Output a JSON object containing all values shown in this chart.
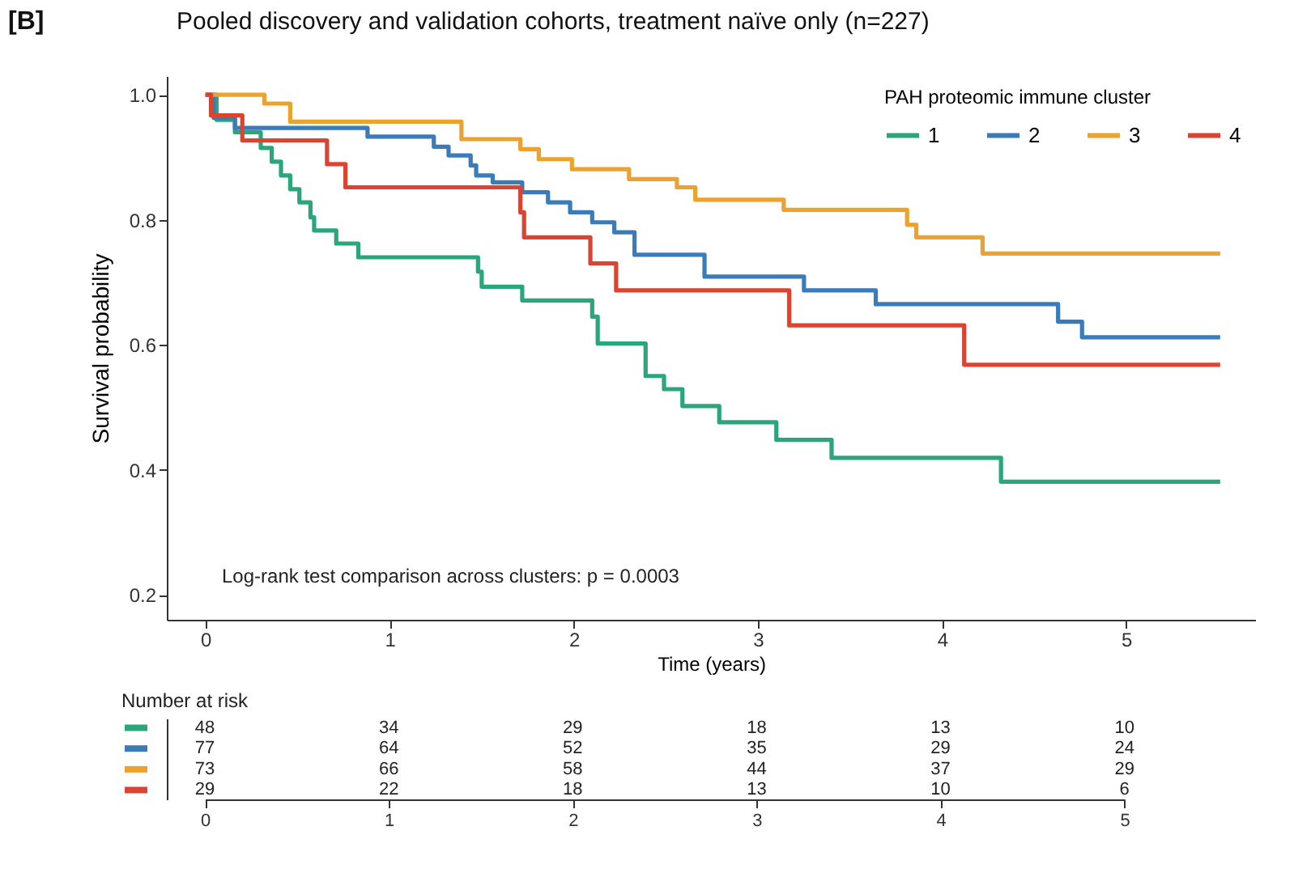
{
  "chart_data": [
    {
      "type": "step",
      "title": "Pooled discovery and validation cohorts, treatment naïve only (n=227)",
      "xlabel": "Time (years)",
      "ylabel": "Survival probability",
      "legend_title": "PAH proteomic immune cluster",
      "legend": "top right",
      "grid": false,
      "line_style": "solid",
      "xlim": [
        -0.21,
        5.7
      ],
      "ylim": [
        0.16,
        1.03
      ],
      "xticks": [
        0,
        1,
        2,
        3,
        4,
        5
      ],
      "yticks": [
        0.2,
        0.4,
        0.6,
        {
          "value": 1.0,
          "label": "1.0"
        },
        0.8
      ],
      "annotations": [
        "[B]",
        "Log-rank test comparison across clusters:  p = 0.0003"
      ],
      "series": [
        {
          "name": "1",
          "color": "#2aa57c",
          "x": [
            0,
            0.06,
            0.16,
            0.3,
            0.36,
            0.41,
            0.46,
            0.51,
            0.57,
            0.59,
            0.71,
            0.83,
            1.48,
            1.5,
            1.72,
            2.1,
            2.13,
            2.39,
            2.49,
            2.59,
            2.79,
            3.1,
            3.4,
            4.32,
            5.51
          ],
          "values": [
            1.0,
            0.96,
            0.94,
            0.915,
            0.893,
            0.871,
            0.849,
            0.828,
            0.804,
            0.783,
            0.762,
            0.74,
            0.717,
            0.693,
            0.671,
            0.645,
            0.602,
            0.55,
            0.529,
            0.502,
            0.476,
            0.448,
            0.419,
            0.381,
            0.381
          ]
        },
        {
          "name": "2",
          "color": "#3b7bb8",
          "x": [
            0,
            0.045,
            0.16,
            0.88,
            1.24,
            1.32,
            1.44,
            1.47,
            1.56,
            1.72,
            1.86,
            1.98,
            2.1,
            2.22,
            2.33,
            2.71,
            3.25,
            3.64,
            4.63,
            4.76,
            5.51
          ],
          "values": [
            1.0,
            0.963,
            0.947,
            0.933,
            0.917,
            0.903,
            0.887,
            0.871,
            0.86,
            0.844,
            0.828,
            0.812,
            0.796,
            0.78,
            0.744,
            0.709,
            0.687,
            0.665,
            0.637,
            0.612,
            0.612
          ]
        },
        {
          "name": "3",
          "color": "#eba22e",
          "x": [
            0,
            0.32,
            0.46,
            1.39,
            1.71,
            1.81,
            1.99,
            2.3,
            2.56,
            2.66,
            3.14,
            3.81,
            3.86,
            4.22,
            5.51
          ],
          "values": [
            1.0,
            0.986,
            0.957,
            0.929,
            0.913,
            0.897,
            0.881,
            0.865,
            0.852,
            0.832,
            0.816,
            0.792,
            0.772,
            0.746,
            0.746
          ]
        },
        {
          "name": "4",
          "color": "#dc4432",
          "x": [
            0,
            0.03,
            0.2,
            0.66,
            0.76,
            1.71,
            1.73,
            2.09,
            2.23,
            3.17,
            4.12,
            5.51
          ],
          "values": [
            1.0,
            0.967,
            0.927,
            0.889,
            0.852,
            0.812,
            0.772,
            0.73,
            0.687,
            0.631,
            0.568,
            0.568
          ]
        }
      ]
    },
    {
      "type": "heatmap",
      "title": "Number at risk",
      "tick_labels": "x",
      "data_labels": true,
      "categories": [
        "0",
        "1",
        "2",
        "3",
        "4",
        "5"
      ],
      "y_categories": [
        null,
        null,
        null,
        null
      ],
      "cells": [
        [
          48,
          34,
          29,
          18,
          13,
          10
        ],
        [
          77,
          64,
          52,
          35,
          29,
          24
        ],
        [
          73,
          66,
          58,
          44,
          37,
          29
        ],
        [
          29,
          22,
          18,
          13,
          10,
          6
        ]
      ]
    }
  ]
}
